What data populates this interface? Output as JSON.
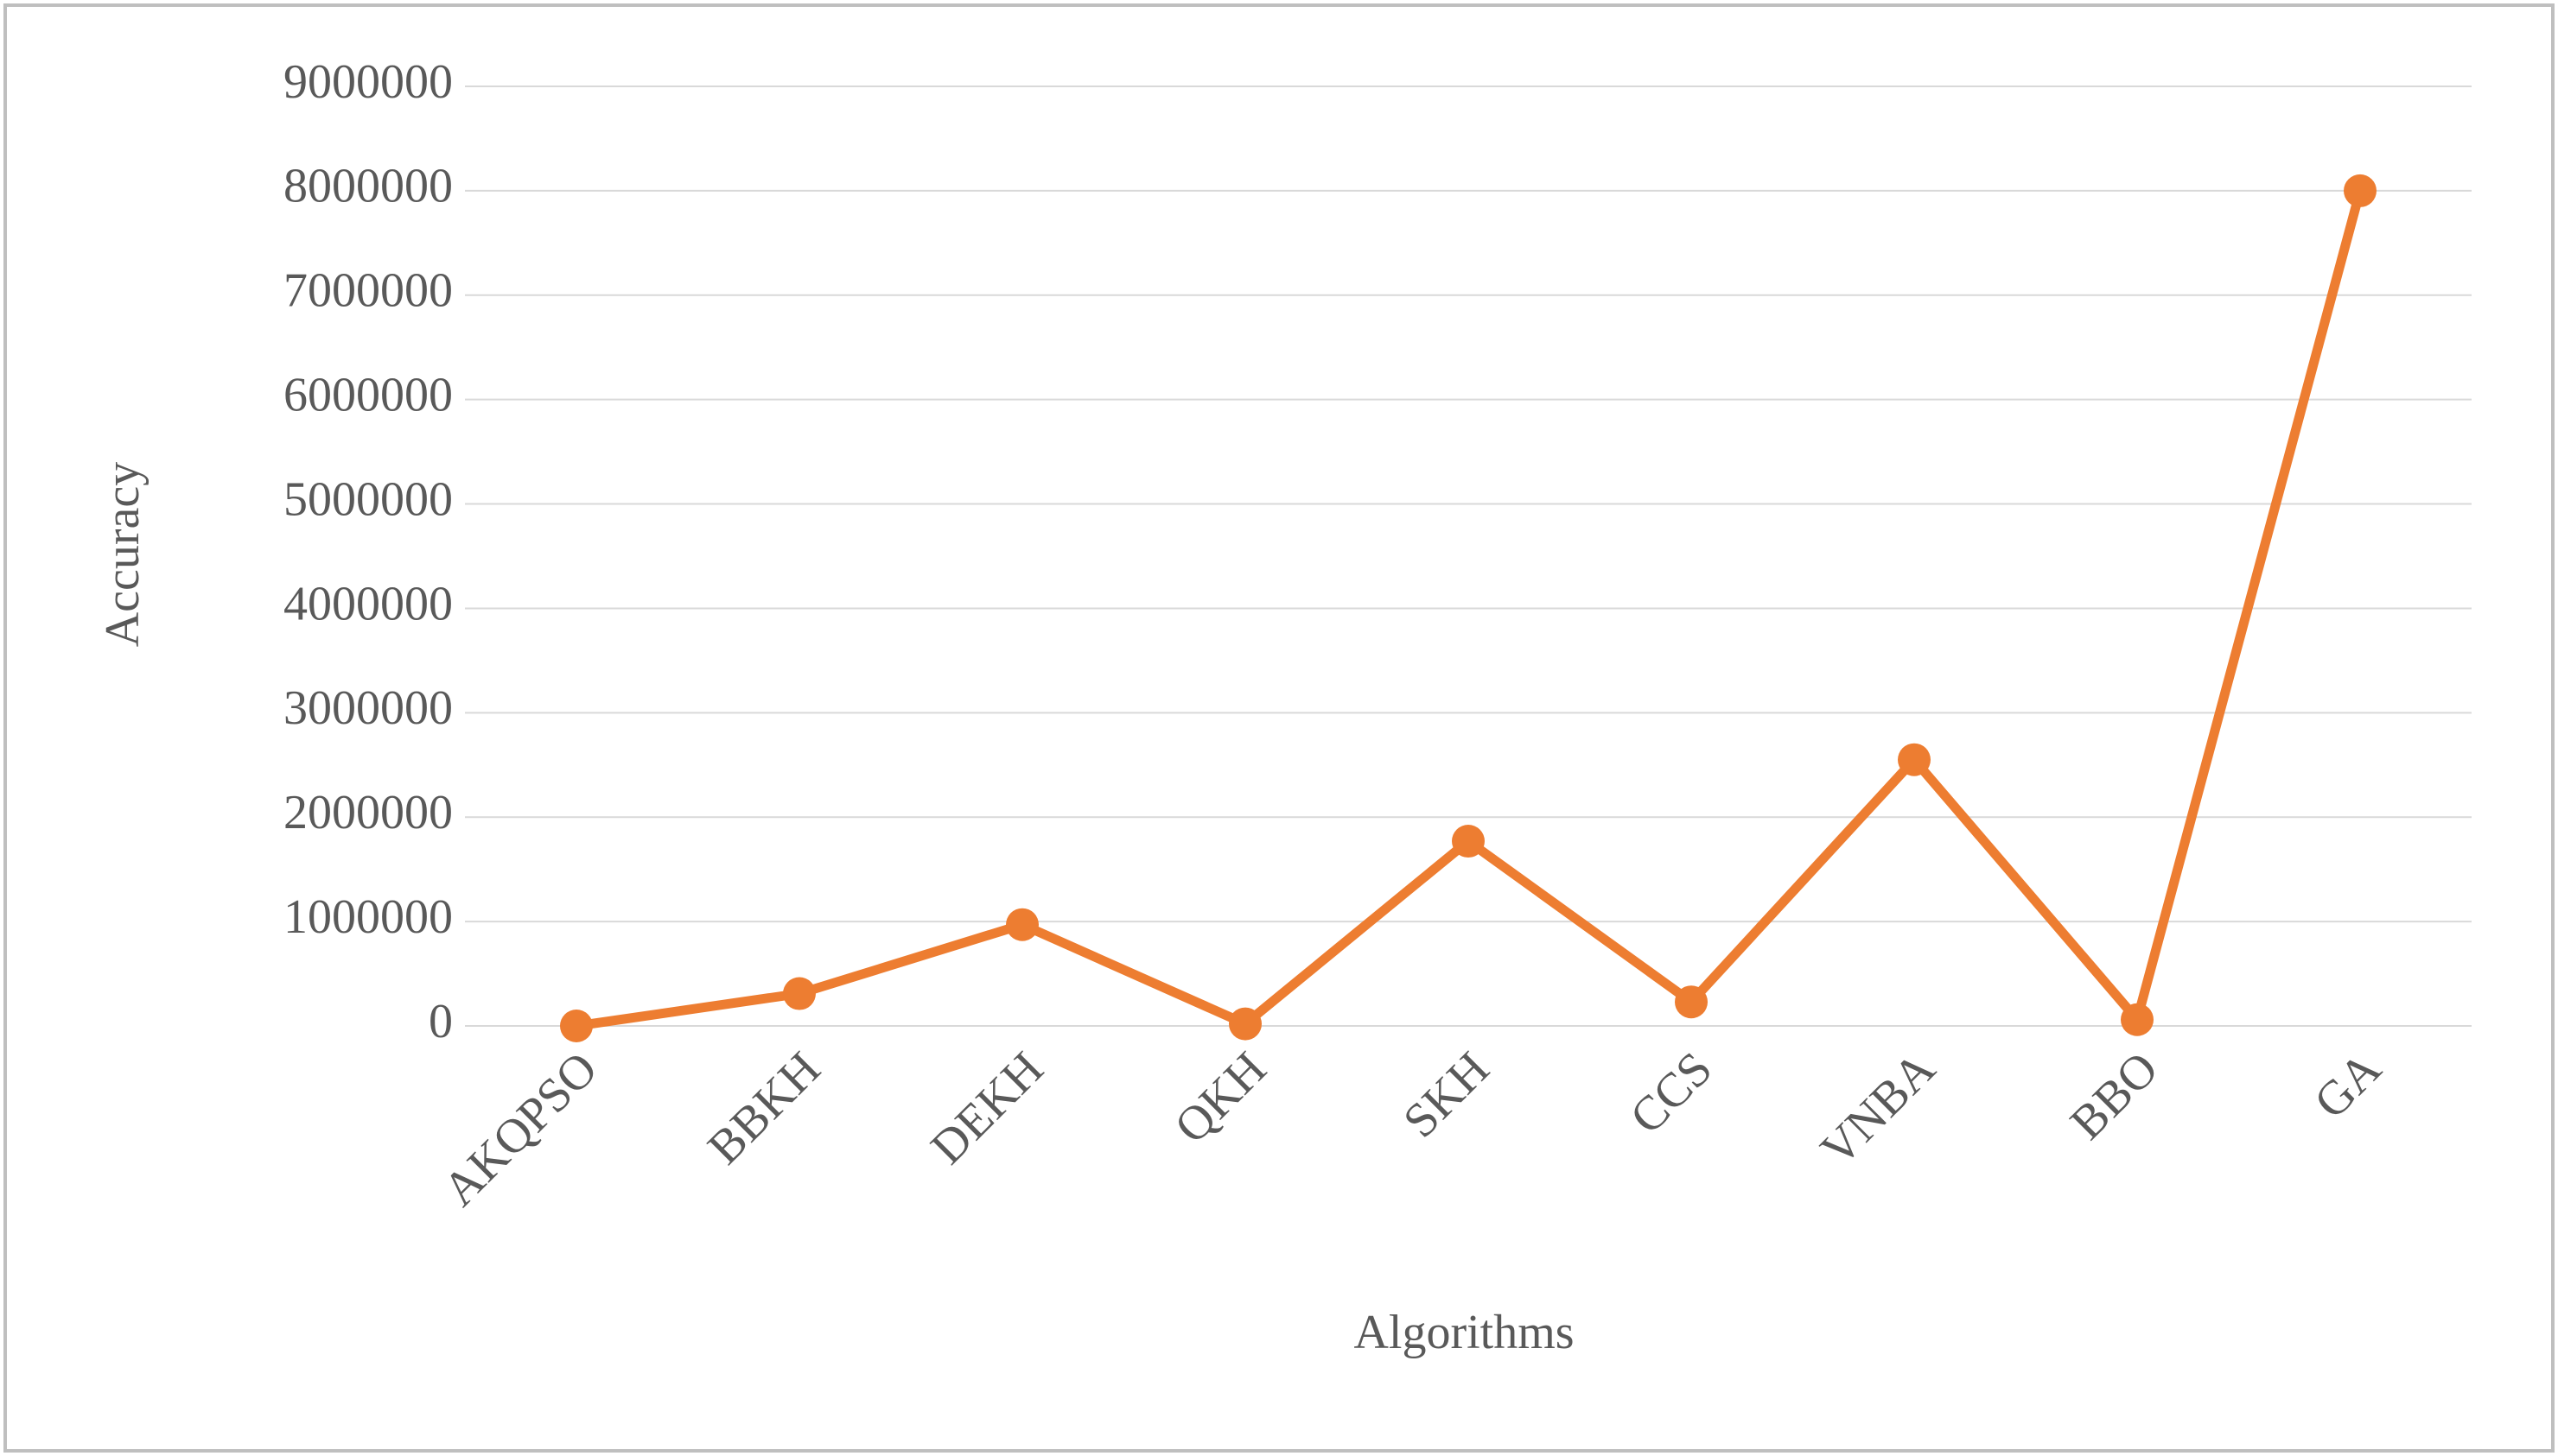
{
  "chart_data": {
    "type": "line",
    "x_label": "Algorithms",
    "y_label": "Accuracy",
    "categories": [
      "AKQPSO",
      "BBKH",
      "DEKH",
      "QKH",
      "SKH",
      "CCS",
      "VNBA",
      "BBO",
      "GA"
    ],
    "series": [
      {
        "color": "#ed7d31",
        "values": [
          0,
          310000,
          970000,
          20000,
          1770000,
          230000,
          2550000,
          60000,
          8000000
        ]
      }
    ],
    "ylim": [
      0,
      9000000
    ],
    "yticks": [
      0,
      1000000,
      2000000,
      3000000,
      4000000,
      5000000,
      6000000,
      7000000,
      8000000,
      9000000
    ],
    "grid": true
  }
}
